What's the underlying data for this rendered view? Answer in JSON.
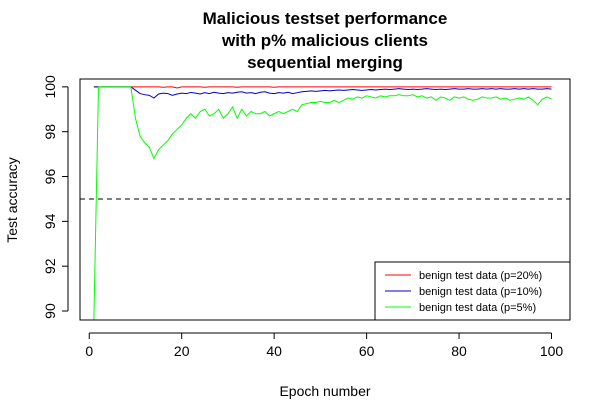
{
  "chart_data": {
    "type": "line",
    "title_lines": [
      "Malicious testset performance",
      "with p% malicious clients",
      "sequential merging"
    ],
    "xlabel": "Epoch number",
    "ylabel": "Test accuracy",
    "xlim": [
      -2,
      104
    ],
    "ylim": [
      89.6,
      100.35
    ],
    "xticks": [
      0,
      20,
      40,
      60,
      80,
      100
    ],
    "yticks": [
      90,
      92,
      94,
      96,
      98,
      100
    ],
    "reference_line": {
      "y": 95,
      "style": "dashed",
      "color": "#000000"
    },
    "legend_position": "bottom-right",
    "series": [
      {
        "name": "benign test data (p=20%)",
        "color": "#ff0000",
        "x": [
          1,
          2,
          3,
          4,
          5,
          6,
          7,
          8,
          9,
          10,
          11,
          12,
          13,
          14,
          15,
          16,
          17,
          18,
          19,
          20,
          21,
          22,
          23,
          24,
          25,
          26,
          27,
          28,
          29,
          30,
          31,
          32,
          33,
          34,
          35,
          36,
          37,
          38,
          39,
          40,
          41,
          42,
          43,
          44,
          45,
          46,
          47,
          48,
          49,
          50,
          51,
          52,
          53,
          54,
          55,
          56,
          57,
          58,
          59,
          60,
          61,
          62,
          63,
          64,
          65,
          66,
          67,
          68,
          69,
          70,
          71,
          72,
          73,
          74,
          75,
          76,
          77,
          78,
          79,
          80,
          81,
          82,
          83,
          84,
          85,
          86,
          87,
          88,
          89,
          90,
          91,
          92,
          93,
          94,
          95,
          96,
          97,
          98,
          99,
          100
        ],
        "y": [
          100,
          100,
          100,
          100,
          100,
          100,
          100,
          100,
          100,
          100,
          100,
          100,
          100,
          100,
          100,
          99.98,
          100,
          100,
          99.95,
          100,
          100,
          100,
          100,
          100,
          99.98,
          100,
          100,
          100,
          100,
          100,
          100,
          99.98,
          100,
          100,
          100,
          100,
          100,
          100,
          100,
          99.98,
          100,
          100,
          100,
          100,
          100,
          100,
          100,
          100,
          100,
          100,
          100,
          100,
          100,
          100,
          100,
          100,
          100,
          100,
          100,
          100,
          100,
          100,
          100,
          100,
          100,
          100,
          100,
          100,
          100,
          100,
          100,
          100,
          100,
          100,
          100,
          100,
          100,
          100,
          100,
          100,
          100,
          100,
          100,
          100,
          100,
          100,
          100,
          100,
          100,
          100,
          100,
          100,
          100,
          100,
          100,
          100,
          100,
          100,
          100,
          100
        ]
      },
      {
        "name": "benign test data (p=10%)",
        "color": "#0000cc",
        "x": [
          1,
          2,
          3,
          4,
          5,
          6,
          7,
          8,
          9,
          10,
          11,
          12,
          13,
          14,
          15,
          16,
          17,
          18,
          19,
          20,
          21,
          22,
          23,
          24,
          25,
          26,
          27,
          28,
          29,
          30,
          31,
          32,
          33,
          34,
          35,
          36,
          37,
          38,
          39,
          40,
          41,
          42,
          43,
          44,
          45,
          46,
          47,
          48,
          49,
          50,
          51,
          52,
          53,
          54,
          55,
          56,
          57,
          58,
          59,
          60,
          61,
          62,
          63,
          64,
          65,
          66,
          67,
          68,
          69,
          70,
          71,
          72,
          73,
          74,
          75,
          76,
          77,
          78,
          79,
          80,
          81,
          82,
          83,
          84,
          85,
          86,
          87,
          88,
          89,
          90,
          91,
          92,
          93,
          94,
          95,
          96,
          97,
          98,
          99,
          100
        ],
        "y": [
          100,
          100,
          100,
          100,
          100,
          100,
          100,
          100,
          100,
          99.85,
          99.7,
          99.65,
          99.62,
          99.5,
          99.68,
          99.72,
          99.7,
          99.62,
          99.68,
          99.72,
          99.7,
          99.75,
          99.72,
          99.68,
          99.74,
          99.7,
          99.76,
          99.72,
          99.7,
          99.74,
          99.72,
          99.76,
          99.78,
          99.72,
          99.74,
          99.7,
          99.76,
          99.78,
          99.72,
          99.7,
          99.74,
          99.72,
          99.76,
          99.7,
          99.74,
          99.78,
          99.8,
          99.82,
          99.8,
          99.82,
          99.84,
          99.82,
          99.84,
          99.86,
          99.84,
          99.86,
          99.88,
          99.86,
          99.84,
          99.86,
          99.88,
          99.86,
          99.88,
          99.9,
          99.88,
          99.9,
          99.92,
          99.9,
          99.88,
          99.9,
          99.88,
          99.9,
          99.92,
          99.9,
          99.88,
          99.9,
          99.88,
          99.9,
          99.92,
          99.9,
          99.9,
          99.92,
          99.9,
          99.9,
          99.92,
          99.9,
          99.92,
          99.9,
          99.92,
          99.9,
          99.9,
          99.92,
          99.9,
          99.92,
          99.9,
          99.92,
          99.9,
          99.9,
          99.92,
          99.9
        ]
      },
      {
        "name": "benign test data (p=5%)",
        "color": "#00ff00",
        "x": [
          1,
          2,
          3,
          4,
          5,
          6,
          7,
          8,
          9,
          10,
          11,
          12,
          13,
          14,
          15,
          16,
          17,
          18,
          19,
          20,
          21,
          22,
          23,
          24,
          25,
          26,
          27,
          28,
          29,
          30,
          31,
          32,
          33,
          34,
          35,
          36,
          37,
          38,
          39,
          40,
          41,
          42,
          43,
          44,
          45,
          46,
          47,
          48,
          49,
          50,
          51,
          52,
          53,
          54,
          55,
          56,
          57,
          58,
          59,
          60,
          61,
          62,
          63,
          64,
          65,
          66,
          67,
          68,
          69,
          70,
          71,
          72,
          73,
          74,
          75,
          76,
          77,
          78,
          79,
          80,
          81,
          82,
          83,
          84,
          85,
          86,
          87,
          88,
          89,
          90,
          91,
          92,
          93,
          94,
          95,
          96,
          97,
          98,
          99,
          100
        ],
        "y": [
          89.6,
          100,
          100,
          100,
          100,
          100,
          100,
          100,
          100,
          98.6,
          97.8,
          97.5,
          97.3,
          96.8,
          97.2,
          97.4,
          97.6,
          97.9,
          98.1,
          98.3,
          98.6,
          98.8,
          98.6,
          98.9,
          99.0,
          98.7,
          98.8,
          99.0,
          98.6,
          98.8,
          99.1,
          98.6,
          99.0,
          98.7,
          98.9,
          98.8,
          98.8,
          98.9,
          98.7,
          98.8,
          98.9,
          98.8,
          98.9,
          99.0,
          98.9,
          99.2,
          99.25,
          99.3,
          99.3,
          99.35,
          99.3,
          99.3,
          99.4,
          99.3,
          99.4,
          99.5,
          99.45,
          99.55,
          99.5,
          99.6,
          99.55,
          99.5,
          99.6,
          99.55,
          99.6,
          99.6,
          99.65,
          99.6,
          99.6,
          99.65,
          99.55,
          99.6,
          99.5,
          99.55,
          99.4,
          99.55,
          99.5,
          99.4,
          99.55,
          99.5,
          99.55,
          99.45,
          99.4,
          99.45,
          99.55,
          99.5,
          99.5,
          99.55,
          99.45,
          99.5,
          99.4,
          99.45,
          99.5,
          99.45,
          99.55,
          99.4,
          99.2,
          99.45,
          99.55,
          99.45
        ]
      }
    ]
  }
}
